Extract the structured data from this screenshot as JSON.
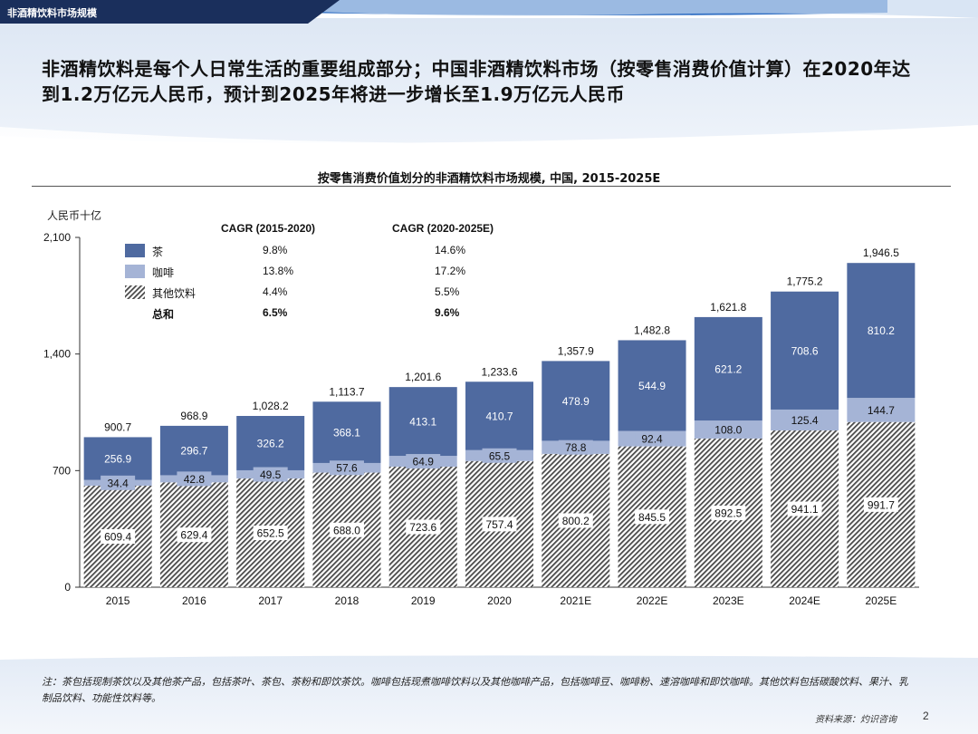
{
  "header": {
    "section_label": "非酒精饮料市场规模"
  },
  "headline": "非酒精饮料是每个人日常生活的重要组成部分；中国非酒精饮料市场（按零售消费价值计算）在2020年达到1.2万亿元人民币，预计到2025年将进一步增长至1.9万亿元人民币",
  "chart_data": {
    "type": "bar",
    "stacked": true,
    "title": "按零售消费价值划分的非酒精饮料市场规模, 中国, 2015-2025E",
    "ylabel": "人民币十亿",
    "ylim": [
      0,
      2100
    ],
    "yticks": [
      "0",
      "700",
      "1,400",
      "2,100"
    ],
    "categories": [
      "2015",
      "2016",
      "2017",
      "2018",
      "2019",
      "2020",
      "2021E",
      "2022E",
      "2023E",
      "2024E",
      "2025E"
    ],
    "series": [
      {
        "name": "其他饮料",
        "values": [
          609.4,
          629.4,
          652.5,
          688.0,
          723.6,
          757.4,
          800.2,
          845.5,
          892.5,
          941.1,
          991.7
        ],
        "labels": [
          "609.4",
          "629.4",
          "652.5",
          "688.0",
          "723.6",
          "757.4",
          "800.2",
          "845.5",
          "892.5",
          "941.1",
          "991.7"
        ]
      },
      {
        "name": "咖啡",
        "values": [
          34.4,
          42.8,
          49.5,
          57.6,
          64.9,
          65.5,
          78.8,
          92.4,
          108.0,
          125.4,
          144.7
        ],
        "labels": [
          "34.4",
          "42.8",
          "49.5",
          "57.6",
          "64.9",
          "65.5",
          "78.8",
          "92.4",
          "108.0",
          "125.4",
          "144.7"
        ]
      },
      {
        "name": "茶",
        "values": [
          256.9,
          296.7,
          326.2,
          368.1,
          413.1,
          410.7,
          478.9,
          544.9,
          621.2,
          708.6,
          810.2
        ],
        "labels": [
          "256.9",
          "296.7",
          "326.2",
          "368.1",
          "413.1",
          "410.7",
          "478.9",
          "544.9",
          "621.2",
          "708.6",
          "810.2"
        ]
      }
    ],
    "totals": [
      900.7,
      968.9,
      1028.2,
      1113.7,
      1201.6,
      1233.6,
      1357.9,
      1482.8,
      1621.8,
      1775.2,
      1946.5
    ],
    "total_labels": [
      "900.7",
      "968.9",
      "1,028.2",
      "1,113.7",
      "1,201.6",
      "1,233.6",
      "1,357.9",
      "1,482.8",
      "1,621.8",
      "1,775.2",
      "1,946.5"
    ],
    "colors": {
      "tea": "#4f6aa0",
      "coffee": "#a5b4d6",
      "other_stripe": "#555555"
    },
    "cagr": {
      "headers": [
        "CAGR (2015-2020)",
        "CAGR (2020-2025E)"
      ],
      "rows": [
        {
          "name": "茶",
          "c1": "9.8%",
          "c2": "14.6%"
        },
        {
          "name": "咖啡",
          "c1": "13.8%",
          "c2": "17.2%"
        },
        {
          "name": "其他饮料",
          "c1": "4.4%",
          "c2": "5.5%"
        },
        {
          "name": "总和",
          "c1": "6.5%",
          "c2": "9.6%"
        }
      ]
    }
  },
  "footnote": "注：茶包括现制茶饮以及其他茶产品，包括茶叶、茶包、茶粉和即饮茶饮。咖啡包括现煮咖啡饮料以及其他咖啡产品，包括咖啡豆、咖啡粉、速溶咖啡和即饮咖啡。其他饮料包括碳酸饮料、果汁、乳制品饮料、功能性饮料等。",
  "source": "资料来源：灼识咨询",
  "page_number": "2"
}
